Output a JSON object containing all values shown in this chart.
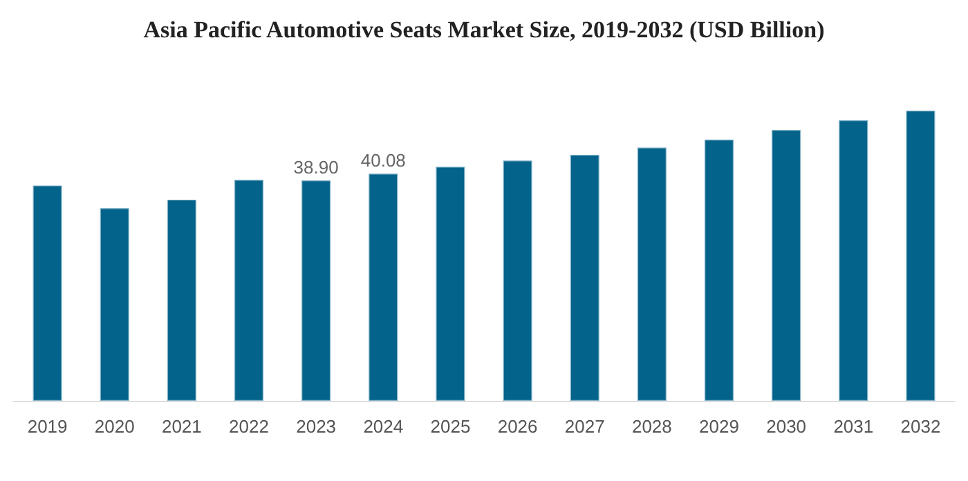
{
  "chart_data": {
    "type": "bar",
    "title": "Asia Pacific Automotive Seats Market Size, 2019-2032 (USD Billion)",
    "categories": [
      "2019",
      "2020",
      "2021",
      "2022",
      "2023",
      "2024",
      "2025",
      "2026",
      "2027",
      "2028",
      "2029",
      "2030",
      "2031",
      "2032"
    ],
    "values": [
      38.0,
      34.0,
      35.5,
      39.0,
      38.9,
      40.08,
      41.3,
      42.4,
      43.4,
      44.7,
      46.1,
      47.8,
      49.5,
      51.2
    ],
    "value_labels": [
      null,
      null,
      null,
      null,
      "38.90",
      "40.08",
      null,
      null,
      null,
      null,
      null,
      null,
      null,
      null
    ],
    "color": "#04638a"
  }
}
